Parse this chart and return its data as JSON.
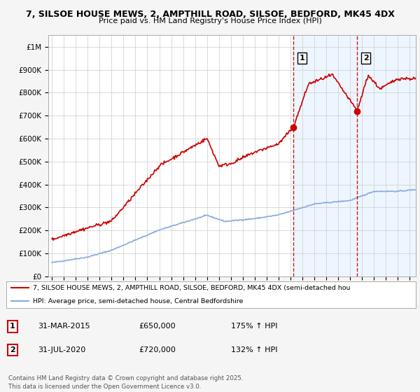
{
  "title_line1": "7, SILSOE HOUSE MEWS, 2, AMPTHILL ROAD, SILSOE, BEDFORD, MK45 4DX",
  "title_line2": "Price paid vs. HM Land Registry's House Price Index (HPI)",
  "bg_color": "#f5f5f5",
  "plot_bg_color": "#ffffff",
  "shade_bg_color": "#ddeeff",
  "red_line_color": "#cc0000",
  "blue_line_color": "#88aadd",
  "vline_color": "#cc0000",
  "ylim": [
    0,
    1050000
  ],
  "yticks": [
    0,
    100000,
    200000,
    300000,
    400000,
    500000,
    600000,
    700000,
    800000,
    900000,
    1000000
  ],
  "ytick_labels": [
    "£0",
    "£100K",
    "£200K",
    "£300K",
    "£400K",
    "£500K",
    "£600K",
    "£700K",
    "£800K",
    "£900K",
    "£1M"
  ],
  "xlim_start": 1994.7,
  "xlim_end": 2025.5,
  "xticks": [
    1995,
    1996,
    1997,
    1998,
    1999,
    2000,
    2001,
    2002,
    2003,
    2004,
    2005,
    2006,
    2007,
    2008,
    2009,
    2010,
    2011,
    2012,
    2013,
    2014,
    2015,
    2016,
    2017,
    2018,
    2019,
    2020,
    2021,
    2022,
    2023,
    2024,
    2025
  ],
  "marker1_x": 2015.25,
  "marker1_y": 650000,
  "marker1_label": "1",
  "marker2_x": 2020.58,
  "marker2_y": 720000,
  "marker2_label": "2",
  "vline1_x": 2015.25,
  "vline2_x": 2020.58,
  "legend_red": "7, SILSOE HOUSE MEWS, 2, AMPTHILL ROAD, SILSOE, BEDFORD, MK45 4DX (semi-detached hou",
  "legend_blue": "HPI: Average price, semi-detached house, Central Bedfordshire",
  "annotation1_box": "1",
  "annotation1_date": "31-MAR-2015",
  "annotation1_price": "£650,000",
  "annotation1_hpi": "175% ↑ HPI",
  "annotation2_box": "2",
  "annotation2_date": "31-JUL-2020",
  "annotation2_price": "£720,000",
  "annotation2_hpi": "132% ↑ HPI",
  "footer": "Contains HM Land Registry data © Crown copyright and database right 2025.\nThis data is licensed under the Open Government Licence v3.0."
}
